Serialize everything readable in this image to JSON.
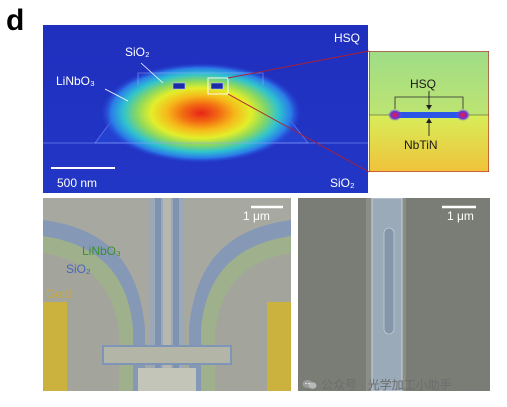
{
  "figure": {
    "panel_letter": "d",
    "sim_main": {
      "hsq_label": "HSQ",
      "sio2_top_label": "SiO₂",
      "linbo3_label": "LiNbO₃",
      "scale_bar_label": "500 nm",
      "sio2_bottom_label": "SiO₂"
    },
    "sim_inset": {
      "hsq_label": "HSQ",
      "nbtin_label": "NbTiN"
    },
    "sem_left": {
      "scale_bar_label": "1 μm",
      "linbo3_label": "LiNbO₃",
      "sio2_label": "SiO₂",
      "gold_label": "Gold"
    },
    "sem_right": {
      "scale_bar_label": "1 μm"
    },
    "colors": {
      "linbo3_label": "#3f8f2e",
      "sio2_label": "#4a66b8",
      "gold_label": "#c9a93a"
    }
  },
  "watermark": {
    "text": "公众号 · 光学加工小助手",
    "icon": "wechat-icon"
  }
}
